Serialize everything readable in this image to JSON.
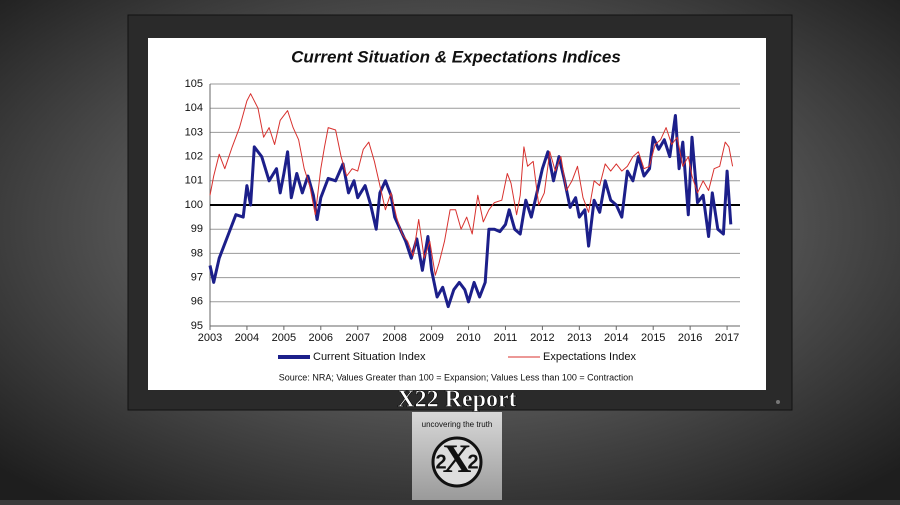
{
  "chart_data": {
    "type": "line",
    "title": "Current Situation & Expectations Indices",
    "note": "Source: NRA; Values Greater than 100 = Expansion; Values Less than 100 = Contraction",
    "xlim": [
      2003,
      2017.35
    ],
    "xticks": [
      2003,
      2004,
      2005,
      2006,
      2007,
      2008,
      2009,
      2010,
      2011,
      2012,
      2013,
      2014,
      2015,
      2016,
      2017
    ],
    "ylim": [
      95,
      105
    ],
    "yticks": [
      95,
      96,
      97,
      98,
      99,
      100,
      101,
      102,
      103,
      104,
      105
    ],
    "grid": true,
    "reference_line": 100,
    "legend": "bottom",
    "series": [
      {
        "name": "Current Situation Index",
        "color": "#1c1f8a",
        "x": [
          2003.0,
          2003.1,
          2003.25,
          2003.5,
          2003.7,
          2003.9,
          2004.0,
          2004.1,
          2004.2,
          2004.4,
          2004.6,
          2004.8,
          2004.9,
          2005.0,
          2005.1,
          2005.2,
          2005.35,
          2005.5,
          2005.65,
          2005.8,
          2005.9,
          2006.0,
          2006.2,
          2006.4,
          2006.6,
          2006.75,
          2006.9,
          2007.0,
          2007.2,
          2007.35,
          2007.5,
          2007.6,
          2007.75,
          2007.9,
          2008.0,
          2008.15,
          2008.3,
          2008.45,
          2008.6,
          2008.75,
          2008.9,
          2009.0,
          2009.15,
          2009.3,
          2009.45,
          2009.6,
          2009.75,
          2009.9,
          2010.0,
          2010.15,
          2010.3,
          2010.45,
          2010.55,
          2010.7,
          2010.85,
          2011.0,
          2011.1,
          2011.25,
          2011.4,
          2011.55,
          2011.7,
          2011.85,
          2012.0,
          2012.15,
          2012.3,
          2012.45,
          2012.6,
          2012.75,
          2012.9,
          2013.0,
          2013.15,
          2013.25,
          2013.4,
          2013.55,
          2013.7,
          2013.85,
          2014.0,
          2014.15,
          2014.3,
          2014.45,
          2014.6,
          2014.75,
          2014.9,
          2015.0,
          2015.15,
          2015.3,
          2015.45,
          2015.6,
          2015.7,
          2015.8,
          2015.95,
          2016.05,
          2016.2,
          2016.35,
          2016.5,
          2016.6,
          2016.75,
          2016.9,
          2017.0,
          2017.1
        ],
        "values": [
          97.5,
          96.8,
          97.8,
          98.8,
          99.6,
          99.5,
          100.8,
          100.0,
          102.4,
          102.0,
          101.0,
          101.5,
          100.5,
          101.3,
          102.2,
          100.3,
          101.3,
          100.5,
          101.2,
          100.4,
          99.4,
          100.3,
          101.1,
          101.0,
          101.7,
          100.5,
          101.0,
          100.3,
          100.8,
          100.0,
          99.0,
          100.5,
          101.0,
          100.4,
          99.5,
          99.0,
          98.5,
          97.8,
          98.6,
          97.3,
          98.7,
          97.3,
          96.2,
          96.6,
          95.8,
          96.5,
          96.8,
          96.5,
          96.0,
          96.8,
          96.2,
          96.8,
          99.0,
          99.0,
          98.9,
          99.2,
          99.8,
          99.0,
          98.8,
          100.2,
          99.5,
          100.5,
          101.5,
          102.2,
          101.0,
          102.0,
          101.0,
          99.9,
          100.3,
          99.5,
          99.8,
          98.3,
          100.2,
          99.7,
          101.0,
          100.2,
          100.0,
          99.5,
          101.4,
          101.0,
          102.0,
          101.2,
          101.5,
          102.8,
          102.3,
          102.7,
          102.0,
          103.7,
          101.5,
          102.6,
          99.6,
          102.8,
          100.1,
          100.4,
          98.7,
          100.5,
          99.0,
          98.8,
          101.4,
          99.2
        ]
      },
      {
        "name": "Expectations Index",
        "color": "#d8312e",
        "x": [
          2003.0,
          2003.1,
          2003.25,
          2003.4,
          2003.6,
          2003.8,
          2004.0,
          2004.1,
          2004.3,
          2004.45,
          2004.6,
          2004.75,
          2004.9,
          2005.1,
          2005.25,
          2005.4,
          2005.55,
          2005.7,
          2005.85,
          2006.0,
          2006.1,
          2006.2,
          2006.4,
          2006.55,
          2006.7,
          2006.85,
          2007.0,
          2007.15,
          2007.3,
          2007.45,
          2007.6,
          2007.75,
          2007.9,
          2008.05,
          2008.2,
          2008.35,
          2008.5,
          2008.65,
          2008.8,
          2008.95,
          2009.1,
          2009.2,
          2009.35,
          2009.5,
          2009.65,
          2009.8,
          2009.95,
          2010.1,
          2010.25,
          2010.4,
          2010.55,
          2010.7,
          2010.9,
          2011.05,
          2011.15,
          2011.3,
          2011.4,
          2011.5,
          2011.6,
          2011.75,
          2011.9,
          2012.05,
          2012.2,
          2012.35,
          2012.5,
          2012.65,
          2012.8,
          2012.95,
          2013.1,
          2013.25,
          2013.4,
          2013.55,
          2013.7,
          2013.85,
          2014.0,
          2014.15,
          2014.3,
          2014.45,
          2014.6,
          2014.75,
          2014.9,
          2015.05,
          2015.2,
          2015.35,
          2015.5,
          2015.65,
          2015.8,
          2015.95,
          2016.05,
          2016.2,
          2016.35,
          2016.5,
          2016.65,
          2016.8,
          2016.95,
          2017.05,
          2017.15
        ],
        "values": [
          100.4,
          101.2,
          102.1,
          101.5,
          102.4,
          103.2,
          104.3,
          104.6,
          104.0,
          102.8,
          103.2,
          102.5,
          103.5,
          103.9,
          103.2,
          102.7,
          101.5,
          100.8,
          99.6,
          101.5,
          102.4,
          103.2,
          103.1,
          102.0,
          101.2,
          101.5,
          101.4,
          102.3,
          102.6,
          101.8,
          100.8,
          99.8,
          100.5,
          99.5,
          98.8,
          98.5,
          97.9,
          99.4,
          97.8,
          98.5,
          97.1,
          97.6,
          98.5,
          99.8,
          99.8,
          99.0,
          99.5,
          98.8,
          100.4,
          99.3,
          99.8,
          100.1,
          100.2,
          101.3,
          100.9,
          99.6,
          100.4,
          102.4,
          101.6,
          101.8,
          100.0,
          100.5,
          102.2,
          101.4,
          102.0,
          100.6,
          101.0,
          101.6,
          100.3,
          99.7,
          101.0,
          100.8,
          101.7,
          101.4,
          101.7,
          101.4,
          101.6,
          102.0,
          102.2,
          101.5,
          101.6,
          102.5,
          102.7,
          103.2,
          102.5,
          102.8,
          101.6,
          102.0,
          101.2,
          100.5,
          101.0,
          100.6,
          101.5,
          101.6,
          102.6,
          102.4,
          101.6
        ]
      }
    ]
  },
  "branding": {
    "title": "X22 Report",
    "tagline": "uncovering the truth",
    "logo": [
      "2",
      "X",
      "2"
    ]
  }
}
